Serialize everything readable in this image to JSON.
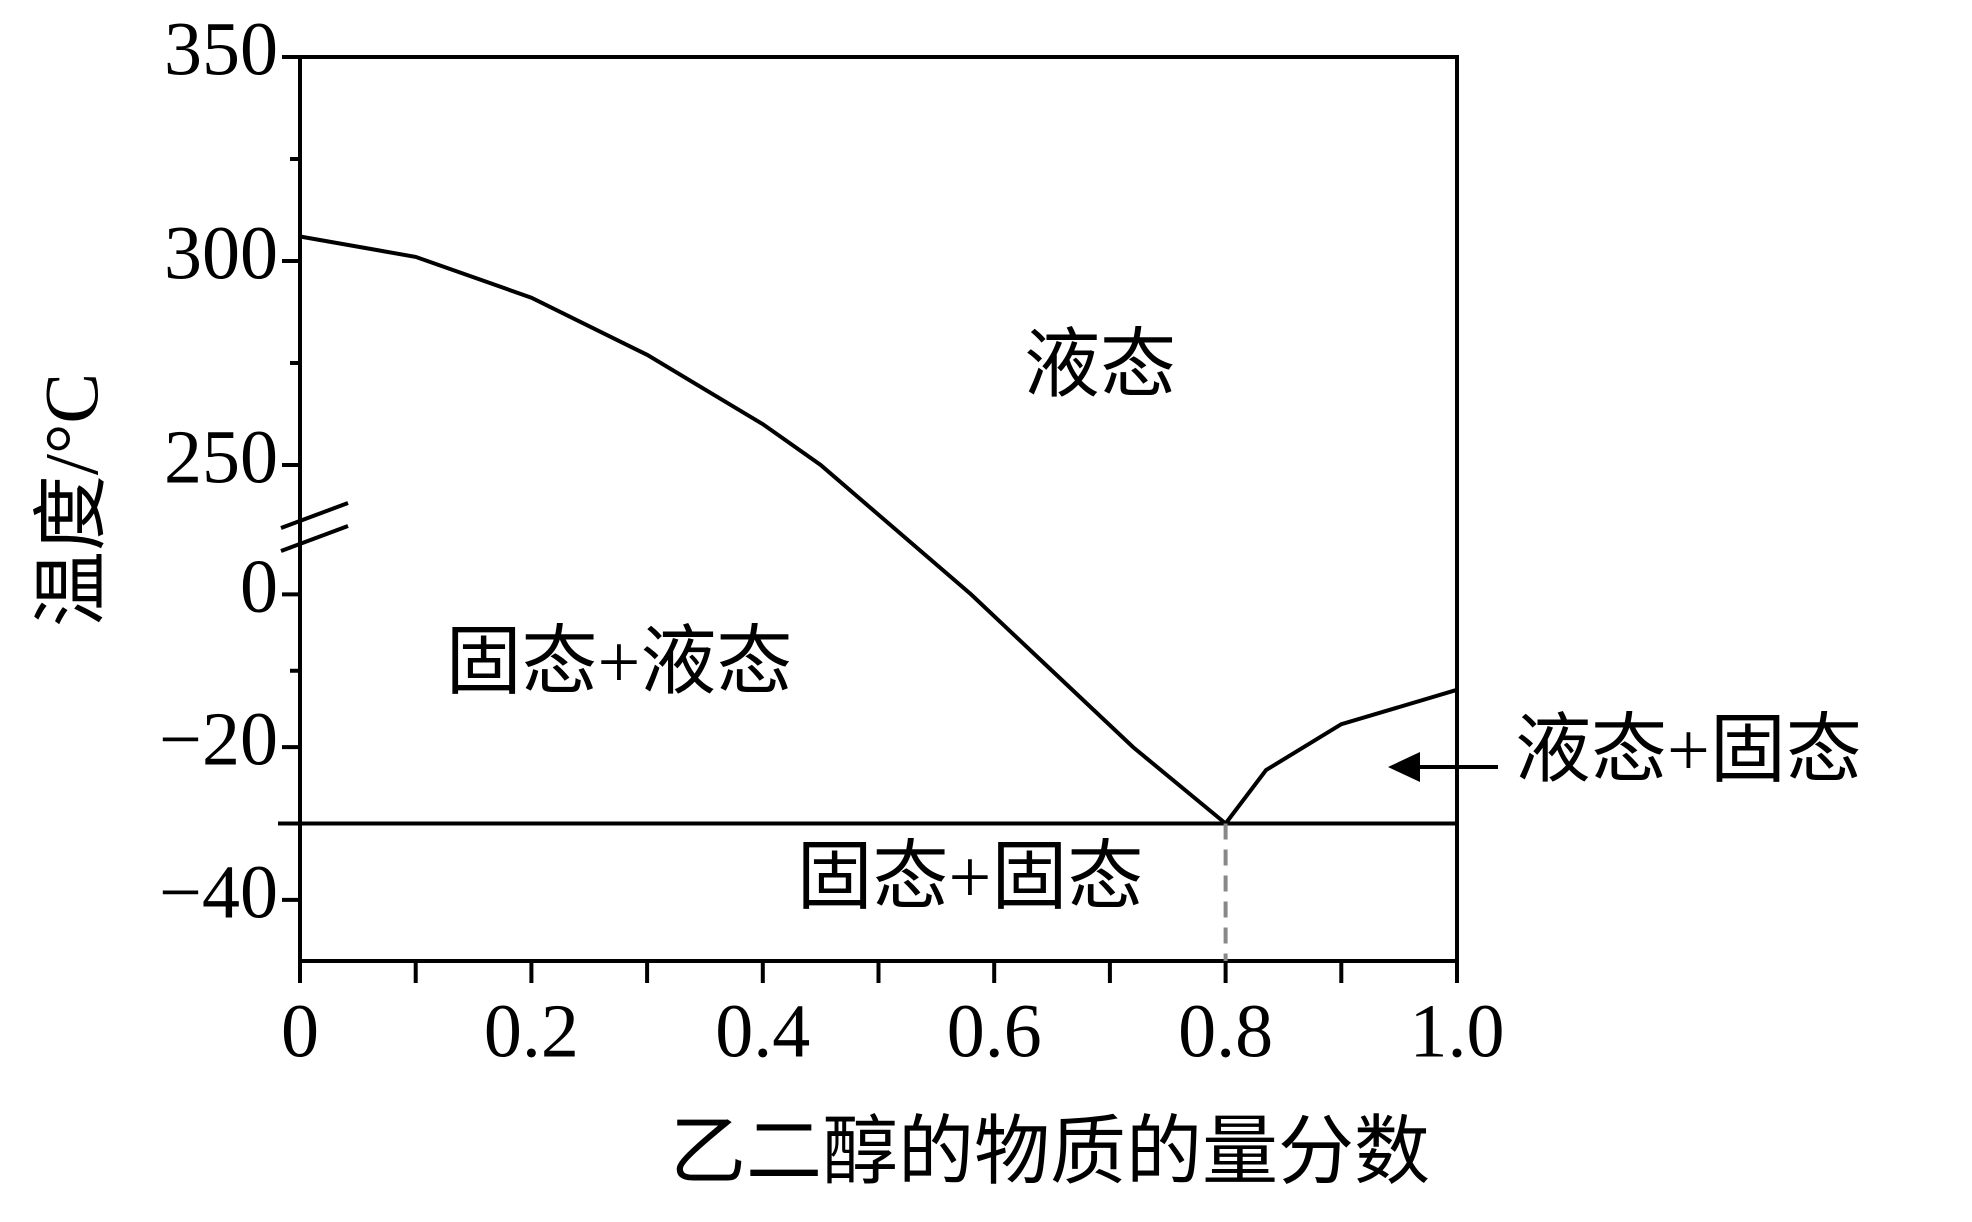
{
  "chart_data": {
    "type": "line",
    "xlabel": "乙二醇的物质的量分数",
    "ylabel": "温度/°C",
    "xlim": [
      0,
      1
    ],
    "xticks": [
      0,
      0.2,
      0.4,
      0.6,
      0.8,
      {
        "value": 1,
        "label": "1.0"
      }
    ],
    "x_minor_ticks": [
      0.1,
      0.3,
      0.5,
      0.7,
      0.9
    ],
    "y_segments": [
      {
        "ylim": [
          -48,
          10
        ]
      },
      {
        "ylim": [
          237,
          350
        ]
      }
    ],
    "yticks": [
      350,
      300,
      250,
      0,
      {
        "value": -20,
        "label": "−20"
      },
      {
        "value": -40,
        "label": "−40"
      }
    ],
    "y_minor_ticks": [
      325,
      275,
      -10,
      -30
    ],
    "series": [
      {
        "x": [
          0,
          0.1,
          0.2,
          0.3,
          0.4,
          0.45,
          0.58,
          0.65,
          0.72,
          0.8
        ],
        "values": [
          306,
          301,
          291,
          277,
          260,
          250,
          0,
          -10,
          -20,
          -30
        ],
        "color": "#000000"
      },
      {
        "x": [
          0.8,
          0.835,
          0.9,
          1
        ],
        "values": [
          -30,
          -23,
          -17,
          -12.5
        ],
        "color": "#000000"
      },
      {
        "x": [
          0,
          1
        ],
        "values": [
          -30,
          -30
        ],
        "color": "#000000"
      }
    ],
    "dashed_line": {
      "x": 0.8,
      "values": [
        -30,
        -48
      ],
      "color": "#888888"
    },
    "annotations": [
      "液态",
      "固态+液态",
      "固态+固态",
      "液态+固态"
    ]
  }
}
